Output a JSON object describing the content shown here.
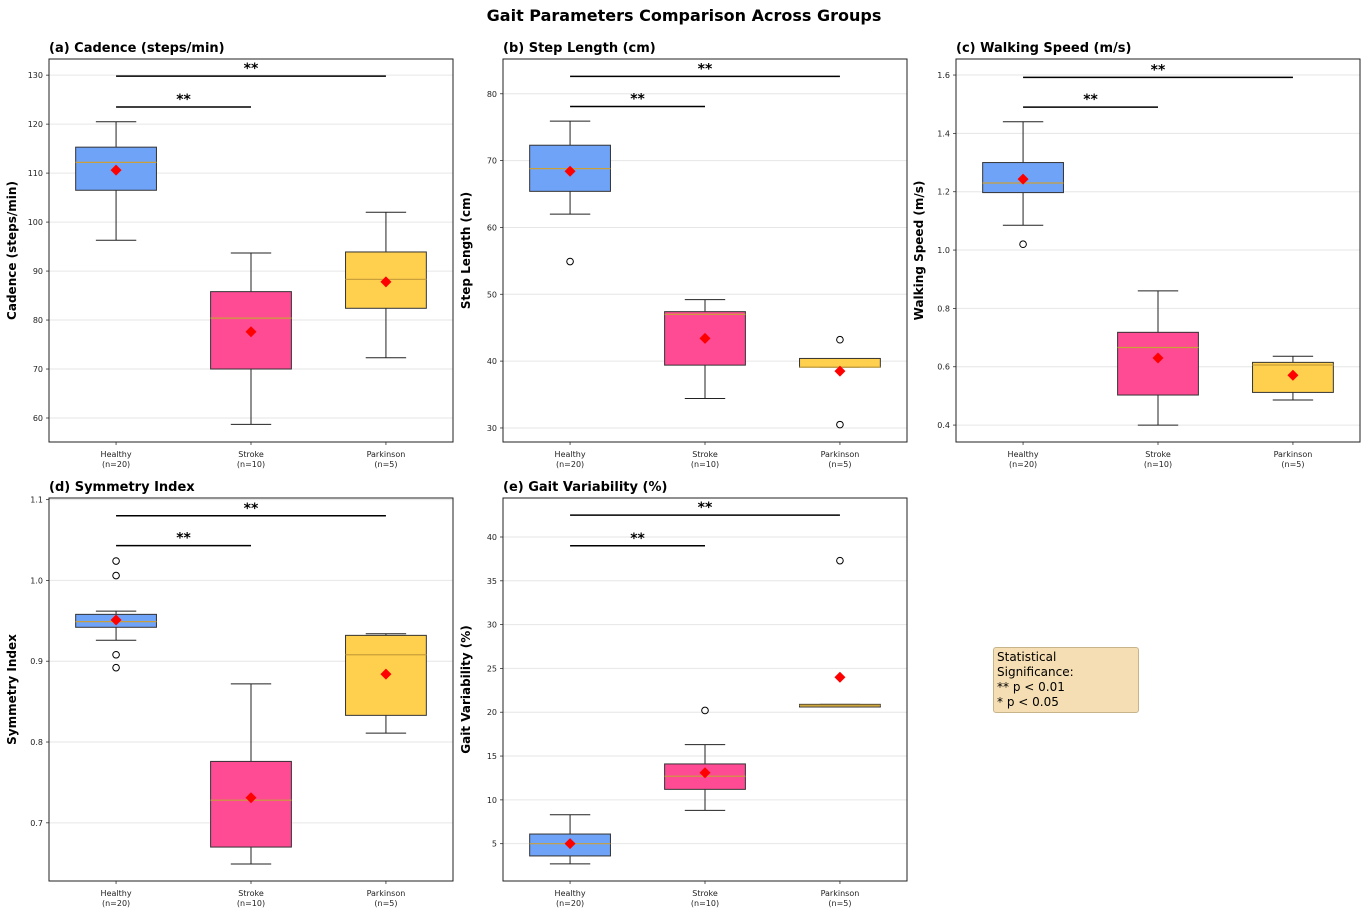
{
  "suptitle": "Gait Parameters Comparison Across Groups",
  "legend_box": {
    "title": "Statistical Significance:",
    "lines": [
      "** p < 0.01",
      "* p < 0.05"
    ]
  },
  "colors": {
    "Healthy": "#6fa3f8",
    "Stroke": "#ff4a94",
    "Parkinson": "#ffd04e",
    "median": "#c9a03a",
    "mean": "#ff0000"
  },
  "chart_data": [
    {
      "type": "box",
      "title": "(a) Cadence (steps/min)",
      "ylabel": "Cadence (steps/min)",
      "ylim": [
        55.1,
        133.3
      ],
      "yticks": [
        60,
        70,
        80,
        90,
        100,
        110,
        120,
        130
      ],
      "grid": true,
      "categories": [
        "Healthy\n(n=20)",
        "Stroke\n(n=10)",
        "Parkinson\n(n=5)"
      ],
      "groups": [
        {
          "name": "Healthy",
          "label": "Healthy",
          "n": "(n=20)",
          "whislo": 96.3,
          "q1": 106.5,
          "med": 112.2,
          "q3": 115.3,
          "whishi": 120.5,
          "mean": 110.6,
          "fliers": []
        },
        {
          "name": "Stroke",
          "label": "Stroke",
          "n": "(n=10)",
          "whislo": 58.7,
          "q1": 70.0,
          "med": 80.4,
          "q3": 85.8,
          "whishi": 93.7,
          "mean": 77.6,
          "fliers": []
        },
        {
          "name": "Parkinson",
          "label": "Parkinson",
          "n": "(n=5)",
          "whislo": 72.3,
          "q1": 82.4,
          "med": 88.3,
          "q3": 93.9,
          "whishi": 102.0,
          "mean": 87.8,
          "fliers": []
        }
      ],
      "significance": [
        {
          "from": 0,
          "to": 1,
          "y": 123.5,
          "label": "**"
        },
        {
          "from": 0,
          "to": 2,
          "y": 129.8,
          "label": "**"
        }
      ]
    },
    {
      "type": "box",
      "title": "(b) Step Length (cm)",
      "ylabel": "Step Length (cm)",
      "ylim": [
        27.9,
        85.2
      ],
      "yticks": [
        30,
        40,
        50,
        60,
        70,
        80
      ],
      "grid": true,
      "categories": [
        "Healthy\n(n=20)",
        "Stroke\n(n=10)",
        "Parkinson\n(n=5)"
      ],
      "groups": [
        {
          "name": "Healthy",
          "label": "Healthy",
          "n": "(n=20)",
          "whislo": 62.0,
          "q1": 65.4,
          "med": 68.8,
          "q3": 72.3,
          "whishi": 75.9,
          "mean": 68.4,
          "fliers": [
            54.9
          ]
        },
        {
          "name": "Stroke",
          "label": "Stroke",
          "n": "(n=10)",
          "whislo": 34.4,
          "q1": 39.4,
          "med": 47.0,
          "q3": 47.4,
          "whishi": 49.2,
          "mean": 43.4,
          "fliers": []
        },
        {
          "name": "Parkinson",
          "label": "Parkinson",
          "n": "(n=5)",
          "whislo": 39.1,
          "q1": 39.1,
          "med": 39.1,
          "q3": 40.4,
          "whishi": 40.4,
          "mean": 38.5,
          "fliers": [
            43.2,
            30.5
          ]
        }
      ],
      "significance": [
        {
          "from": 0,
          "to": 1,
          "y": 78.1,
          "label": "**"
        },
        {
          "from": 0,
          "to": 2,
          "y": 82.6,
          "label": "**"
        }
      ]
    },
    {
      "type": "box",
      "title": "(c) Walking Speed (m/s)",
      "ylabel": "Walking Speed (m/s)",
      "ylim": [
        0.342,
        1.655
      ],
      "yticks": [
        0.4,
        0.6,
        0.8,
        1.0,
        1.2,
        1.4,
        1.6
      ],
      "yticklabels": [
        "0.4",
        "0.6",
        "0.8",
        "1.0",
        "1.2",
        "1.4",
        "1.6"
      ],
      "grid": true,
      "categories": [
        "Healthy\n(n=20)",
        "Stroke\n(n=10)",
        "Parkinson\n(n=5)"
      ],
      "groups": [
        {
          "name": "Healthy",
          "label": "Healthy",
          "n": "(n=20)",
          "whislo": 1.085,
          "q1": 1.197,
          "med": 1.23,
          "q3": 1.3,
          "whishi": 1.44,
          "mean": 1.243,
          "fliers": [
            1.02
          ]
        },
        {
          "name": "Stroke",
          "label": "Stroke",
          "n": "(n=10)",
          "whislo": 0.4,
          "q1": 0.503,
          "med": 0.666,
          "q3": 0.718,
          "whishi": 0.86,
          "mean": 0.63,
          "fliers": []
        },
        {
          "name": "Parkinson",
          "label": "Parkinson",
          "n": "(n=5)",
          "whislo": 0.486,
          "q1": 0.512,
          "med": 0.606,
          "q3": 0.615,
          "whishi": 0.636,
          "mean": 0.571,
          "fliers": []
        }
      ],
      "significance": [
        {
          "from": 0,
          "to": 1,
          "y": 1.49,
          "label": "**"
        },
        {
          "from": 0,
          "to": 2,
          "y": 1.592,
          "label": "**"
        }
      ]
    },
    {
      "type": "box",
      "title": "(d) Symmetry Index",
      "ylabel": "Symmetry Index",
      "ylim": [
        0.628,
        1.102
      ],
      "yticks": [
        0.7,
        0.8,
        0.9,
        1.0,
        1.1
      ],
      "yticklabels": [
        "0.7",
        "0.8",
        "0.9",
        "1.0",
        "1.1"
      ],
      "grid": true,
      "categories": [
        "Healthy\n(n=20)",
        "Stroke\n(n=10)",
        "Parkinson\n(n=5)"
      ],
      "groups": [
        {
          "name": "Healthy",
          "label": "Healthy",
          "n": "(n=20)",
          "whislo": 0.926,
          "q1": 0.942,
          "med": 0.949,
          "q3": 0.958,
          "whishi": 0.962,
          "mean": 0.951,
          "fliers": [
            1.024,
            1.006,
            0.908,
            0.892
          ]
        },
        {
          "name": "Stroke",
          "label": "Stroke",
          "n": "(n=10)",
          "whislo": 0.649,
          "q1": 0.67,
          "med": 0.728,
          "q3": 0.776,
          "whishi": 0.872,
          "mean": 0.731,
          "fliers": []
        },
        {
          "name": "Parkinson",
          "label": "Parkinson",
          "n": "(n=5)",
          "whislo": 0.811,
          "q1": 0.833,
          "med": 0.908,
          "q3": 0.932,
          "whishi": 0.934,
          "mean": 0.884,
          "fliers": []
        }
      ],
      "significance": [
        {
          "from": 0,
          "to": 1,
          "y": 1.043,
          "label": "**"
        },
        {
          "from": 0,
          "to": 2,
          "y": 1.08,
          "label": "**"
        }
      ]
    },
    {
      "type": "box",
      "title": "(e) Gait Variability (%)",
      "ylabel": "Gait Variability (%)",
      "ylim": [
        0.74,
        44.45
      ],
      "yticks": [
        5,
        10,
        15,
        20,
        25,
        30,
        35,
        40
      ],
      "grid": true,
      "categories": [
        "Healthy\n(n=20)",
        "Stroke\n(n=10)",
        "Parkinson\n(n=5)"
      ],
      "groups": [
        {
          "name": "Healthy",
          "label": "Healthy",
          "n": "(n=20)",
          "whislo": 2.7,
          "q1": 3.6,
          "med": 5.0,
          "q3": 6.1,
          "whishi": 8.3,
          "mean": 5.0,
          "fliers": []
        },
        {
          "name": "Stroke",
          "label": "Stroke",
          "n": "(n=10)",
          "whislo": 8.8,
          "q1": 11.2,
          "med": 12.7,
          "q3": 14.1,
          "whishi": 16.3,
          "mean": 13.1,
          "fliers": [
            20.2
          ]
        },
        {
          "name": "Parkinson",
          "label": "Parkinson",
          "n": "(n=5)",
          "whislo": 20.6,
          "q1": 20.6,
          "med": 20.8,
          "q3": 20.9,
          "whishi": 20.9,
          "mean": 24.0,
          "fliers": [
            37.3
          ]
        }
      ],
      "significance": [
        {
          "from": 0,
          "to": 1,
          "y": 39.0,
          "label": "**"
        },
        {
          "from": 0,
          "to": 2,
          "y": 42.5,
          "label": "**"
        }
      ]
    }
  ]
}
